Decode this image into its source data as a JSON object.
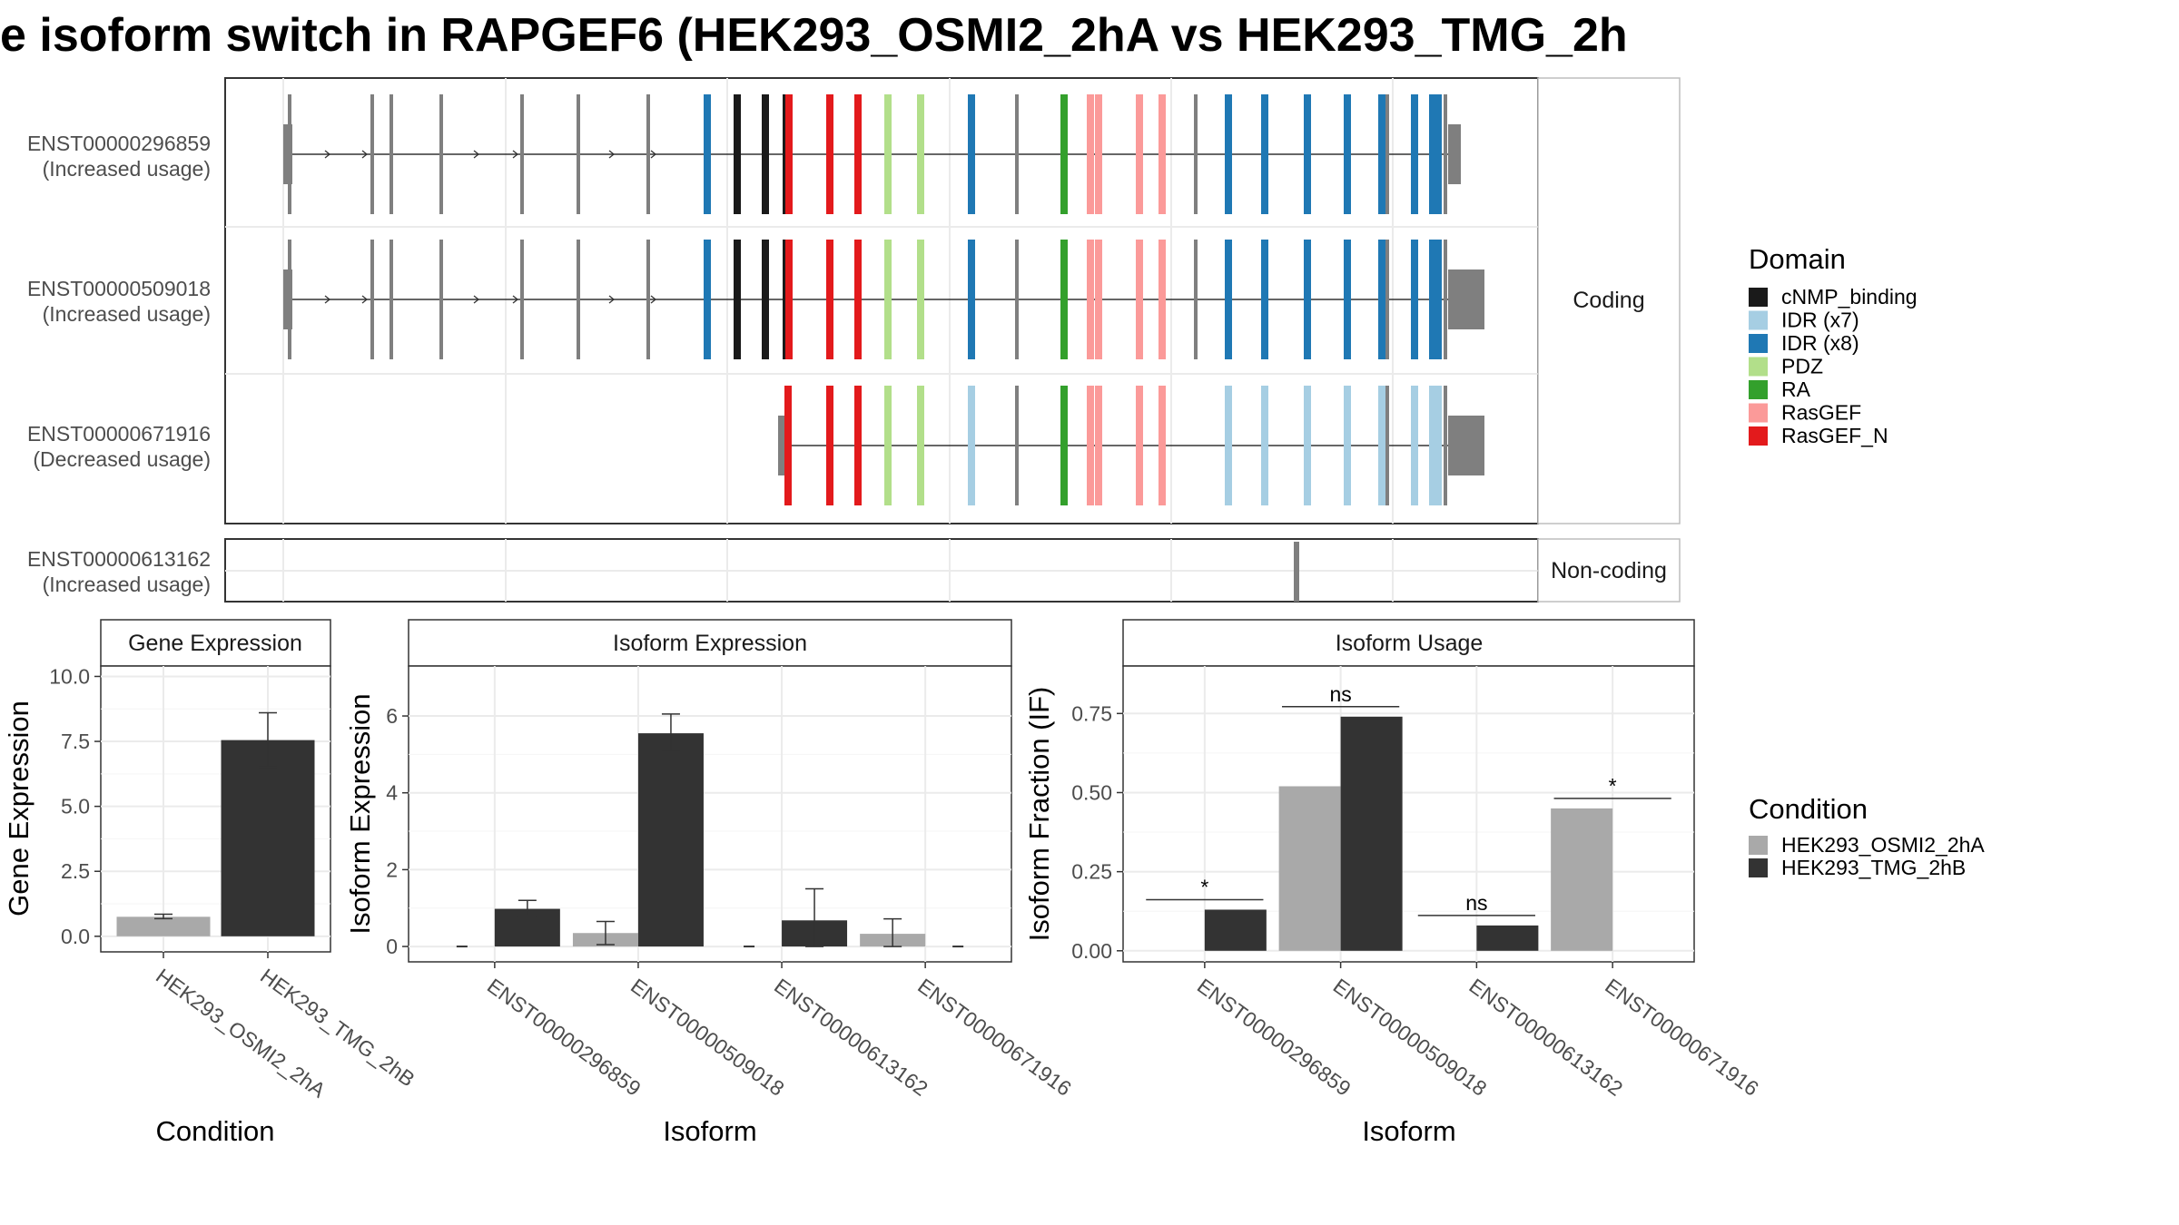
{
  "title": "e isoform switch in RAPGEF6 (HEK293_OSMI2_2hA vs HEK293_TMG_2h",
  "colors": {
    "cNMP_binding": "#1a1a1a",
    "IDR (x7)": "#a6cee3",
    "IDR (x8)": "#1f78b4",
    "PDZ": "#b2df8a",
    "RA": "#33a02c",
    "RasGEF": "#fb9a99",
    "RasGEF_N": "#e31a1c",
    "none": "#7f7f7f",
    "osmi": "#a9a9a9",
    "tmg": "#333333"
  },
  "transcripts": {
    "facet_coding": "Coding",
    "facet_noncoding": "Non-coding",
    "rows": [
      {
        "id": "ENST00000296859",
        "usage": "(Increased usage)",
        "group": "coding"
      },
      {
        "id": "ENST00000509018",
        "usage": "(Increased usage)",
        "group": "coding"
      },
      {
        "id": "ENST00000671916",
        "usage": "(Decreased usage)",
        "group": "coding"
      },
      {
        "id": "ENST00000613162",
        "usage": "(Increased usage)",
        "group": "noncoding"
      }
    ]
  },
  "legend_domain": {
    "title": "Domain",
    "items": [
      "cNMP_binding",
      "IDR (x7)",
      "IDR (x8)",
      "PDZ",
      "RA",
      "RasGEF",
      "RasGEF_N"
    ]
  },
  "legend_condition": {
    "title": "Condition",
    "items": [
      "HEK293_OSMI2_2hA",
      "HEK293_TMG_2hB"
    ]
  },
  "chart_data": [
    {
      "type": "bar",
      "title": "Gene Expression",
      "xlabel": "Condition",
      "ylabel": "Gene Expression",
      "ylim": [
        -0.6,
        10.4
      ],
      "yticks": [
        "0.0",
        "2.5",
        "5.0",
        "7.5",
        "10.0"
      ],
      "categories": [
        "HEK293_OSMI2_2hA",
        "HEK293_TMG_2hB"
      ],
      "values": [
        0.75,
        7.55
      ],
      "errors": [
        [
          0.68,
          0.85
        ],
        [
          6.5,
          8.6
        ]
      ]
    },
    {
      "type": "bar",
      "title": "Isoform Expression",
      "xlabel": "Isoform",
      "ylabel": "Isoform Expression",
      "ylim": [
        -0.4,
        7.3
      ],
      "yticks": [
        "0",
        "2",
        "4",
        "6"
      ],
      "categories": [
        "ENST00000296859",
        "ENST00000509018",
        "ENST00000613162",
        "ENST00000671916"
      ],
      "series": [
        {
          "name": "HEK293_OSMI2_2hA",
          "values": [
            0.0,
            0.35,
            0.0,
            0.33
          ],
          "errors": [
            [
              0.0,
              0.0
            ],
            [
              0.05,
              0.65
            ],
            [
              0.0,
              0.0
            ],
            [
              0.0,
              0.72
            ]
          ]
        },
        {
          "name": "HEK293_TMG_2hB",
          "values": [
            0.98,
            5.55,
            0.68,
            0.0
          ],
          "errors": [
            [
              0.8,
              1.2
            ],
            [
              5.1,
              6.05
            ],
            [
              0.0,
              1.5
            ],
            [
              0.0,
              0.0
            ]
          ]
        }
      ]
    },
    {
      "type": "bar",
      "title": "Isoform Usage",
      "xlabel": "Isoform",
      "ylabel": "Isoform Fraction (IF)",
      "ylim": [
        -0.035,
        0.9
      ],
      "yticks": [
        "0.00",
        "0.25",
        "0.50",
        "0.75"
      ],
      "categories": [
        "ENST00000296859",
        "ENST00000509018",
        "ENST00000613162",
        "ENST00000671916"
      ],
      "series": [
        {
          "name": "HEK293_OSMI2_2hA",
          "values": [
            0.0,
            0.52,
            0.0,
            0.45
          ]
        },
        {
          "name": "HEK293_TMG_2hB",
          "values": [
            0.13,
            0.74,
            0.08,
            0.0
          ]
        }
      ],
      "annotations": [
        "*",
        "ns",
        "ns",
        "*"
      ]
    }
  ]
}
